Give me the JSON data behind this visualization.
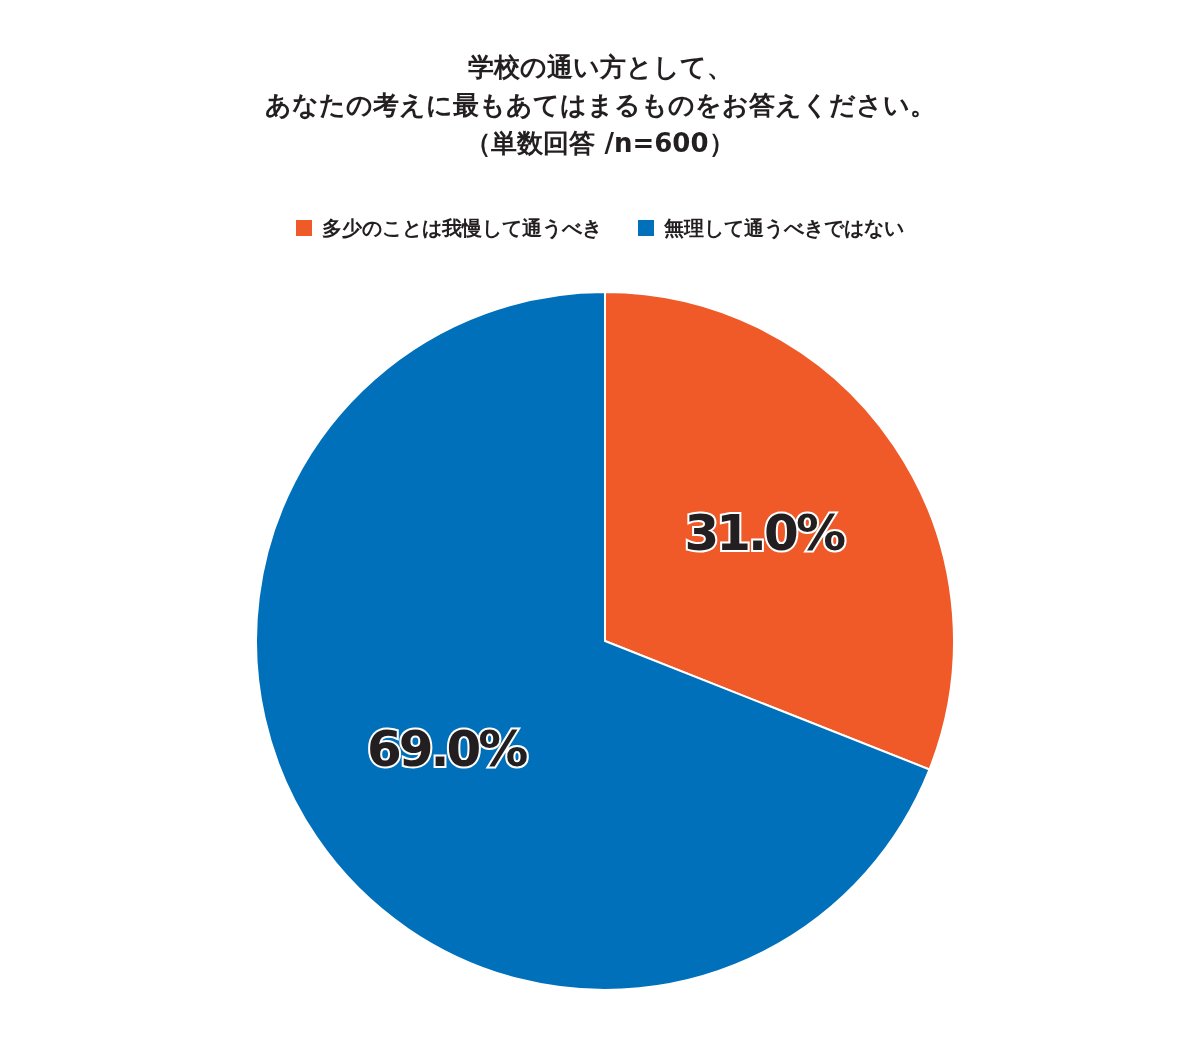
{
  "chart_data": {
    "type": "pie",
    "title": "学校の通い方として、あなたの考えに最もあてはまるものをお答えください。",
    "subtitle": "（単数回答 /n=600）",
    "categories": [
      "多少のことは我慢して通うべき",
      "無理して通うべきではない"
    ],
    "values": [
      31.0,
      69.0
    ],
    "colors": [
      "#f05a28",
      "#0070bb"
    ],
    "value_labels": [
      "31.0%",
      "69.0%"
    ],
    "legend": "top"
  }
}
